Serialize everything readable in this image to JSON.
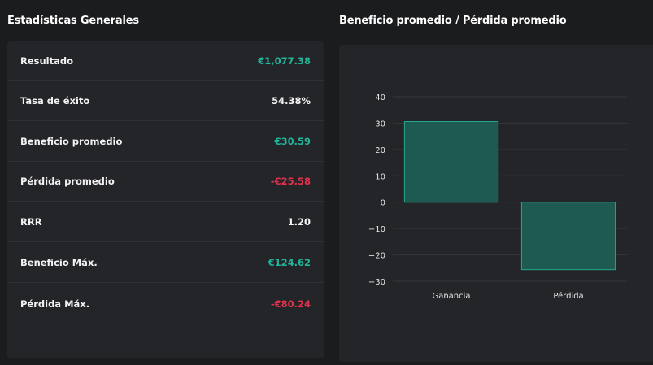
{
  "stats_panel": {
    "title": "Estadísticas Generales",
    "rows": [
      {
        "label": "Resultado",
        "value": "€1,077.38",
        "tone": "positive"
      },
      {
        "label": "Tasa de éxito",
        "value": "54.38%",
        "tone": "neutral"
      },
      {
        "label": "Beneficio promedio",
        "value": "€30.59",
        "tone": "positive"
      },
      {
        "label": "Pérdida promedio",
        "value": "-€25.58",
        "tone": "negative"
      },
      {
        "label": "RRR",
        "value": "1.20",
        "tone": "neutral"
      },
      {
        "label": "Beneficio Máx.",
        "value": "€124.62",
        "tone": "positive"
      },
      {
        "label": "Pérdida Máx.",
        "value": "-€80.24",
        "tone": "negative"
      }
    ]
  },
  "chart_panel": {
    "title": "Beneficio promedio / Pérdida promedio"
  },
  "colors": {
    "background": "#1b1c1e",
    "card": "#242528",
    "positive": "#22b39a",
    "negative": "#e0334e",
    "bar_fill": "#1e5a52",
    "bar_stroke": "#23a88f"
  },
  "chart_data": {
    "type": "bar",
    "title": "",
    "categories": [
      "Ganancia",
      "Pérdida"
    ],
    "values": [
      30.59,
      -25.58
    ],
    "ylim": [
      -30,
      40
    ],
    "yticks": [
      40,
      30,
      20,
      10,
      0,
      -10,
      -20,
      -30
    ],
    "ytick_labels": [
      "40",
      "30",
      "20",
      "10",
      "0",
      "−10",
      "−20",
      "−30"
    ],
    "xlabel": "",
    "ylabel": "",
    "grid": true
  }
}
